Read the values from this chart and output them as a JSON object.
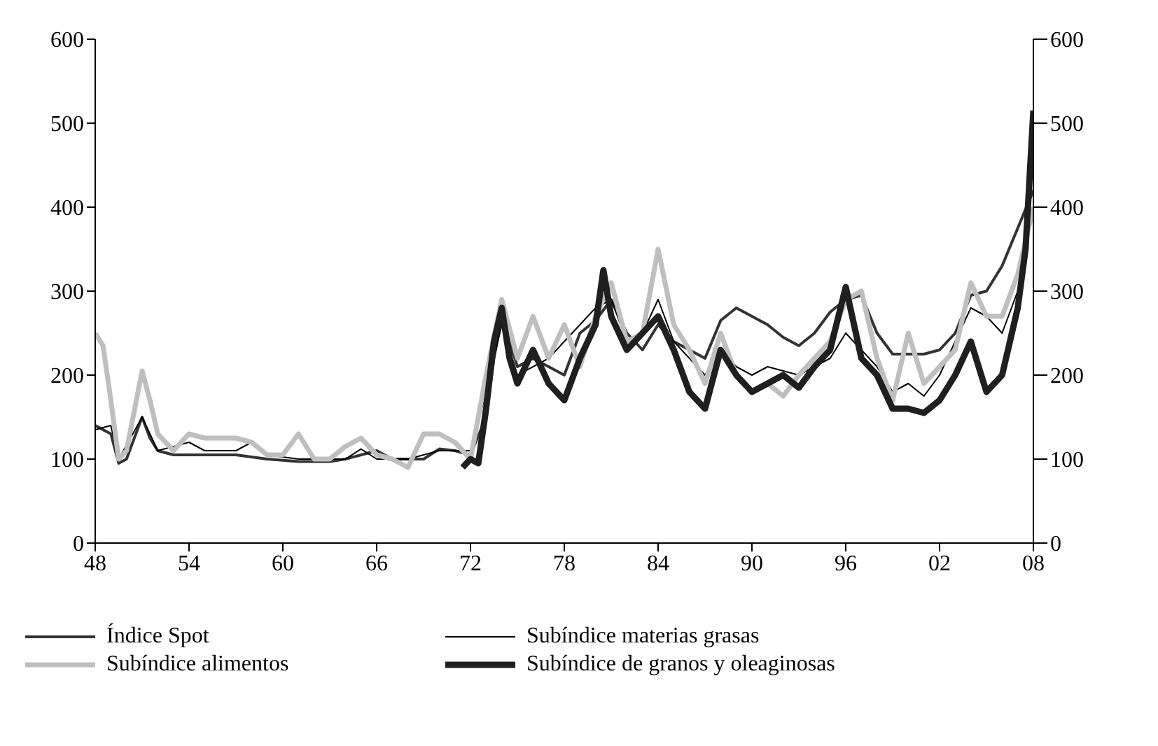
{
  "chart_data": {
    "type": "line",
    "xlim": [
      1948,
      2008
    ],
    "xticks": [
      {
        "value": 1948,
        "label": "48"
      },
      {
        "value": 1954,
        "label": "54"
      },
      {
        "value": 1960,
        "label": "60"
      },
      {
        "value": 1966,
        "label": "66"
      },
      {
        "value": 1972,
        "label": "72"
      },
      {
        "value": 1978,
        "label": "78"
      },
      {
        "value": 1984,
        "label": "84"
      },
      {
        "value": 1990,
        "label": "90"
      },
      {
        "value": 1996,
        "label": "96"
      },
      {
        "value": 2002,
        "label": "02"
      },
      {
        "value": 2008,
        "label": "08"
      }
    ],
    "ylim": [
      0,
      600
    ],
    "yticks": [
      0,
      100,
      200,
      300,
      400,
      500,
      600
    ],
    "y2lim": [
      0,
      600
    ],
    "y2ticks": [
      0,
      100,
      200,
      300,
      400,
      500,
      600
    ],
    "grid": false,
    "legend": "bottom",
    "marker": "none",
    "line_style": "solid",
    "series": [
      {
        "name": "Índice Spot",
        "color": "#333333",
        "x": [
          1948,
          1949,
          1949.5,
          1950,
          1951,
          1951.5,
          1952,
          1953,
          1955,
          1957,
          1959,
          1961,
          1963,
          1964,
          1966,
          1967,
          1969,
          1970,
          1971,
          1972,
          1973,
          1973.5,
          1974,
          1975,
          1976,
          1977,
          1978,
          1979,
          1980,
          1981,
          1982,
          1983,
          1984,
          1985,
          1986,
          1987,
          1988,
          1989,
          1990,
          1991,
          1992,
          1993,
          1994,
          1995,
          1996,
          1997,
          1998,
          1999,
          2000,
          2001,
          2002,
          2003,
          2004,
          2005,
          2006,
          2007,
          2008
        ],
        "values": [
          140,
          130,
          95,
          100,
          150,
          125,
          110,
          105,
          105,
          105,
          100,
          97,
          97,
          100,
          110,
          100,
          100,
          112,
          110,
          105,
          150,
          220,
          270,
          210,
          220,
          210,
          200,
          250,
          265,
          290,
          250,
          230,
          260,
          240,
          230,
          220,
          265,
          280,
          270,
          260,
          245,
          235,
          250,
          275,
          290,
          295,
          250,
          225,
          225,
          225,
          230,
          250,
          295,
          300,
          330,
          375,
          420
        ]
      },
      {
        "name": "Subíndice materias grasas",
        "color": "#000000",
        "x": [
          1948,
          1949,
          1949.5,
          1951,
          1952,
          1954,
          1955,
          1957,
          1958,
          1959,
          1961,
          1964,
          1965,
          1966,
          1968,
          1970,
          1972,
          1973,
          1974,
          1975,
          1977,
          1979,
          1980,
          1981,
          1982,
          1983,
          1984,
          1985,
          1986,
          1987,
          1988,
          1989,
          1990,
          1991,
          1993,
          1995,
          1996,
          1997,
          1998,
          1999,
          2000,
          2001,
          2002,
          2003,
          2004,
          2005,
          2006,
          2007,
          2008
        ],
        "values": [
          135,
          140,
          100,
          150,
          110,
          120,
          110,
          110,
          120,
          105,
          100,
          100,
          112,
          100,
          100,
          110,
          110,
          180,
          260,
          200,
          220,
          260,
          280,
          290,
          240,
          250,
          290,
          240,
          220,
          200,
          230,
          210,
          200,
          210,
          200,
          220,
          250,
          230,
          210,
          180,
          190,
          175,
          200,
          240,
          280,
          270,
          250,
          300,
          400
        ]
      },
      {
        "name": "Subíndice alimentos",
        "color": "#bfbfbf",
        "x": [
          1948,
          1948.5,
          1949,
          1949.5,
          1950,
          1951,
          1951.5,
          1952,
          1953,
          1954,
          1955,
          1957,
          1958,
          1959,
          1960,
          1961,
          1962,
          1963,
          1964,
          1965,
          1966,
          1967,
          1968,
          1969,
          1970,
          1971,
          1972,
          1973,
          1974,
          1975,
          1976,
          1977,
          1978,
          1979,
          1980,
          1981,
          1982,
          1983,
          1984,
          1985,
          1986,
          1987,
          1988,
          1989,
          1990,
          1991,
          1992,
          1993,
          1994,
          1995,
          1996,
          1997,
          1998,
          1999,
          2000,
          2001,
          2002,
          2003,
          2004,
          2005,
          2006,
          2007,
          2008
        ],
        "values": [
          250,
          235,
          170,
          100,
          110,
          205,
          170,
          130,
          110,
          130,
          125,
          125,
          120,
          105,
          105,
          130,
          100,
          100,
          115,
          125,
          105,
          100,
          90,
          130,
          130,
          120,
          100,
          200,
          290,
          220,
          270,
          220,
          260,
          210,
          270,
          310,
          240,
          250,
          350,
          260,
          230,
          190,
          250,
          200,
          180,
          190,
          175,
          200,
          220,
          240,
          290,
          300,
          220,
          170,
          250,
          190,
          210,
          230,
          310,
          270,
          270,
          320,
          400
        ]
      },
      {
        "name": "Subíndice de granos y oleaginosas",
        "color": "#1f1f1f",
        "x": [
          1971.5,
          1972,
          1972.5,
          1973,
          1973.5,
          1974,
          1974.5,
          1975,
          1976,
          1977,
          1978,
          1979,
          1980,
          1980.5,
          1981,
          1982,
          1983,
          1984,
          1985,
          1986,
          1987,
          1988,
          1989,
          1990,
          1991,
          1992,
          1993,
          1994,
          1995,
          1996,
          1997,
          1998,
          1999,
          2000,
          2001,
          2002,
          2003,
          2004,
          2005,
          2006,
          2007,
          2007.5,
          2008
        ],
        "values": [
          90,
          100,
          95,
          160,
          240,
          280,
          220,
          190,
          230,
          190,
          170,
          220,
          260,
          325,
          270,
          230,
          250,
          270,
          230,
          180,
          160,
          230,
          200,
          180,
          190,
          200,
          185,
          210,
          230,
          305,
          220,
          200,
          160,
          160,
          155,
          170,
          200,
          240,
          180,
          200,
          280,
          350,
          515
        ]
      }
    ]
  }
}
